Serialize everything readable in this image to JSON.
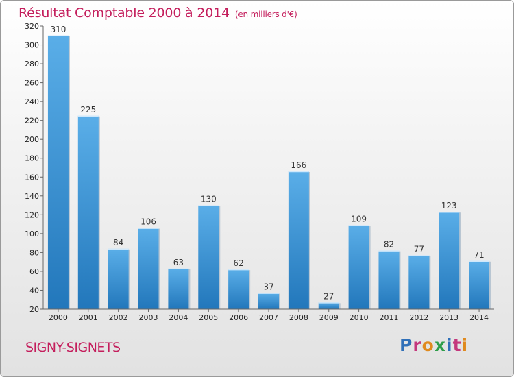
{
  "header": {
    "title": "Résultat Comptable 2000 à 2014",
    "subtitle": "(en milliers d'€)"
  },
  "footer": {
    "commune": "SIGNY-SIGNETS",
    "brand": "Proxiti"
  },
  "colors": {
    "title": "#c41e5c",
    "bar_top": "#5aaee8",
    "bar_bottom": "#2277bb"
  },
  "chart_data": {
    "type": "bar",
    "title": "Résultat Comptable 2000 à 2014",
    "ylabel": "en milliers d'€",
    "categories": [
      "2000",
      "2001",
      "2002",
      "2003",
      "2004",
      "2005",
      "2006",
      "2007",
      "2008",
      "2009",
      "2010",
      "2011",
      "2012",
      "2013",
      "2014"
    ],
    "values": [
      310,
      225,
      84,
      106,
      63,
      130,
      62,
      37,
      166,
      27,
      109,
      82,
      77,
      123,
      71
    ],
    "ylim": [
      20,
      320
    ],
    "yticks": [
      20,
      40,
      60,
      80,
      100,
      120,
      140,
      160,
      180,
      200,
      220,
      240,
      260,
      280,
      300,
      320
    ],
    "grid": false
  }
}
